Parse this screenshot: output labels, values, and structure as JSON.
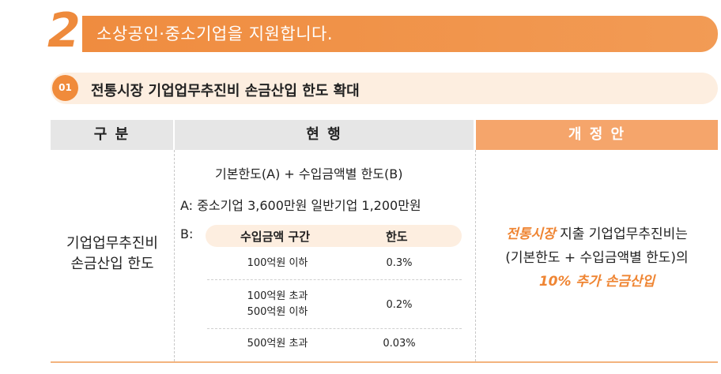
{
  "section": {
    "number": "2",
    "title": "소상공인·중소기업을 지원합니다."
  },
  "subsection": {
    "number": "01",
    "title": "전통시장 기업업무추진비 손금산입 한도 확대"
  },
  "table": {
    "headers": {
      "category": "구 분",
      "current": "현 행",
      "proposal": "개 정 안"
    },
    "row_label": [
      "기업업무추진비",
      "손금산입 한도"
    ],
    "current": {
      "line1": "기본한도(A) + 수입금액별 한도(B)",
      "line2": "A: 중소기업 3,600만원 일반기업 1,200만원",
      "b_label": "B:",
      "inner_headers": [
        "수입금액 구간",
        "한도"
      ],
      "inner_rows": [
        {
          "range": [
            "100억원 이하"
          ],
          "limit": "0.3%"
        },
        {
          "range": [
            "100억원 초과",
            "500억원 이하"
          ],
          "limit": "0.2%"
        },
        {
          "range": [
            "500억원 초과"
          ],
          "limit": "0.03%"
        }
      ]
    },
    "proposal": {
      "hl1": "전통시장",
      "line1_rest": " 지출 기업업무추진비는",
      "line2": "(기본한도 + 수입금액별 한도)의",
      "hl2": "10% 추가 손금산입"
    }
  }
}
